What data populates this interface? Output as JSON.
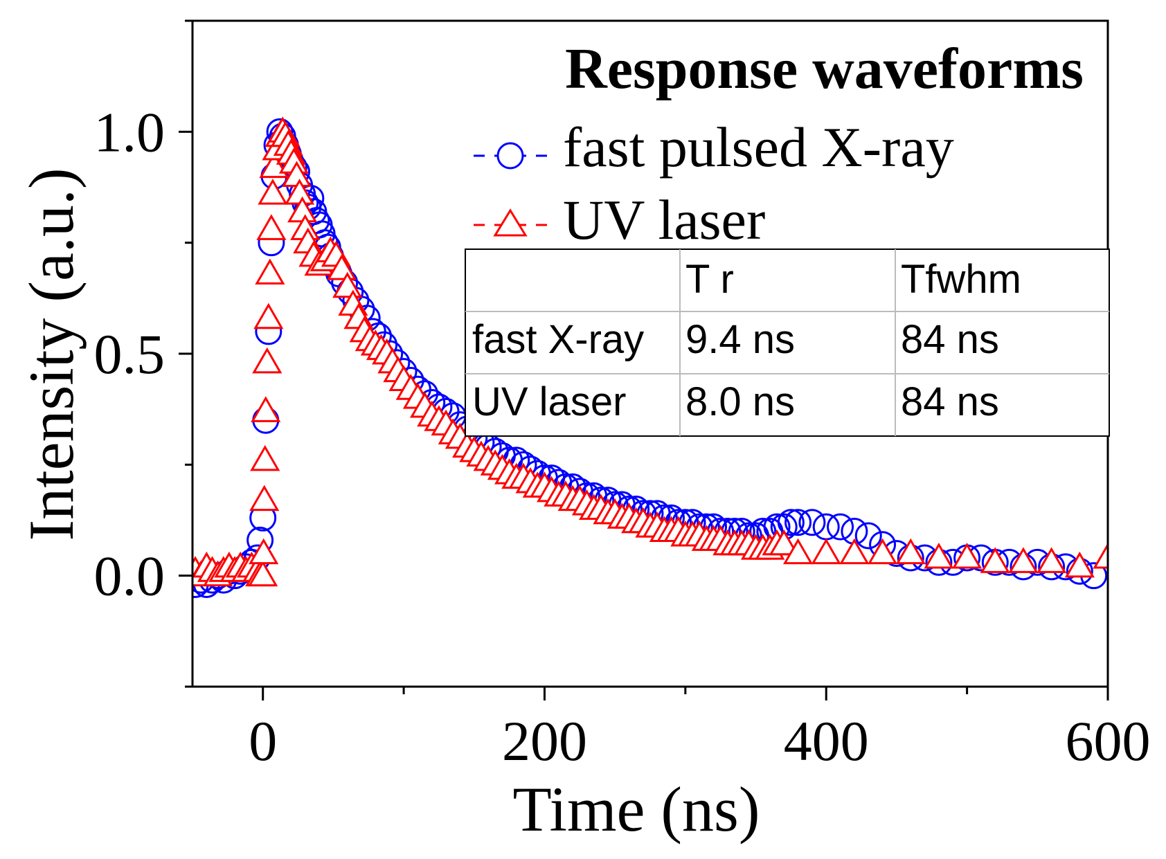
{
  "chart_data": {
    "type": "scatter",
    "title": "",
    "xlabel": "Time (ns)",
    "ylabel": "Intensity (a.u.)",
    "xlim": [
      -50,
      600
    ],
    "ylim": [
      -0.25,
      1.25
    ],
    "x_ticks": [
      0,
      200,
      400,
      600
    ],
    "x_tick_labels": [
      "0",
      "200",
      "400",
      "600"
    ],
    "y_ticks": [
      0.0,
      0.5,
      1.0
    ],
    "y_tick_labels": [
      "0.0",
      "0.5",
      "1.0"
    ],
    "legend": {
      "title": "Response waveforms",
      "position": "top-right"
    },
    "series": [
      {
        "name": "fast pulsed X-ray",
        "legend_label": "fast pulsed X-ray",
        "marker": "circle",
        "color": "#0000ff",
        "x": [
          -48,
          -44,
          -40,
          -36,
          -32,
          -28,
          -24,
          -20,
          -16,
          -12,
          -8,
          -4,
          -2,
          0,
          2,
          4,
          6,
          8,
          10,
          12,
          14,
          16,
          18,
          20,
          22,
          24,
          26,
          28,
          30,
          32,
          34,
          36,
          38,
          40,
          42,
          44,
          46,
          48,
          50,
          54,
          58,
          62,
          66,
          70,
          74,
          78,
          82,
          86,
          90,
          95,
          100,
          105,
          110,
          115,
          120,
          125,
          130,
          135,
          140,
          145,
          150,
          155,
          160,
          165,
          170,
          175,
          180,
          185,
          190,
          195,
          200,
          205,
          210,
          215,
          220,
          225,
          230,
          235,
          240,
          245,
          250,
          255,
          260,
          265,
          270,
          275,
          280,
          285,
          290,
          295,
          300,
          305,
          310,
          315,
          320,
          325,
          330,
          335,
          340,
          345,
          350,
          355,
          360,
          365,
          370,
          375,
          380,
          390,
          400,
          410,
          420,
          430,
          440,
          450,
          460,
          470,
          480,
          490,
          500,
          510,
          520,
          530,
          540,
          550,
          560,
          570,
          580,
          590
        ],
        "y": [
          -0.02,
          -0.01,
          -0.02,
          -0.01,
          0.0,
          -0.01,
          0.01,
          0.0,
          0.01,
          0.02,
          0.03,
          0.04,
          0.08,
          0.13,
          0.35,
          0.55,
          0.75,
          0.9,
          0.97,
          1.0,
          0.99,
          0.97,
          0.95,
          0.93,
          0.92,
          0.91,
          0.88,
          0.86,
          0.84,
          0.83,
          0.85,
          0.82,
          0.8,
          0.79,
          0.77,
          0.75,
          0.74,
          0.72,
          0.7,
          0.68,
          0.66,
          0.64,
          0.62,
          0.6,
          0.58,
          0.55,
          0.54,
          0.52,
          0.5,
          0.48,
          0.46,
          0.44,
          0.42,
          0.41,
          0.39,
          0.38,
          0.37,
          0.36,
          0.34,
          0.33,
          0.31,
          0.3,
          0.29,
          0.28,
          0.27,
          0.26,
          0.26,
          0.25,
          0.24,
          0.23,
          0.22,
          0.22,
          0.21,
          0.2,
          0.2,
          0.19,
          0.18,
          0.18,
          0.17,
          0.17,
          0.16,
          0.16,
          0.15,
          0.15,
          0.14,
          0.14,
          0.14,
          0.13,
          0.13,
          0.12,
          0.12,
          0.12,
          0.11,
          0.11,
          0.11,
          0.1,
          0.1,
          0.1,
          0.1,
          0.09,
          0.09,
          0.1,
          0.1,
          0.11,
          0.11,
          0.12,
          0.12,
          0.12,
          0.11,
          0.11,
          0.1,
          0.09,
          0.07,
          0.05,
          0.04,
          0.04,
          0.03,
          0.03,
          0.04,
          0.04,
          0.03,
          0.03,
          0.02,
          0.03,
          0.02,
          0.02,
          0.01,
          0.0
        ]
      },
      {
        "name": "UV laser",
        "legend_label": "UV laser",
        "marker": "triangle",
        "color": "#ff0000",
        "x": [
          -48,
          -44,
          -40,
          -36,
          -32,
          -28,
          -24,
          -20,
          -16,
          -12,
          -8,
          -4,
          -2,
          0,
          0.5,
          1,
          1.5,
          2,
          3,
          4,
          5,
          6,
          7,
          8,
          10,
          12,
          14,
          16,
          18,
          20,
          22,
          24,
          26,
          28,
          30,
          32,
          36,
          40,
          44,
          48,
          52,
          56,
          60,
          64,
          68,
          72,
          76,
          80,
          84,
          88,
          92,
          96,
          100,
          105,
          110,
          115,
          120,
          125,
          130,
          135,
          140,
          145,
          150,
          155,
          160,
          165,
          170,
          175,
          180,
          185,
          190,
          195,
          200,
          205,
          210,
          215,
          220,
          225,
          230,
          235,
          240,
          245,
          250,
          255,
          260,
          265,
          270,
          275,
          280,
          285,
          290,
          295,
          300,
          305,
          310,
          315,
          320,
          325,
          330,
          335,
          340,
          345,
          350,
          355,
          360,
          365,
          370,
          380,
          400,
          420,
          440,
          460,
          480,
          500,
          520,
          540,
          560,
          580,
          600
        ],
        "y": [
          0.01,
          0.0,
          0.02,
          0.01,
          0.0,
          0.01,
          0.02,
          0.01,
          0.02,
          0.01,
          0.02,
          0.01,
          0.0,
          0.0,
          0.05,
          0.17,
          0.26,
          0.37,
          0.48,
          0.58,
          0.68,
          0.78,
          0.86,
          0.92,
          0.96,
          0.99,
          1.0,
          0.99,
          0.97,
          0.95,
          0.93,
          0.9,
          0.86,
          0.82,
          0.78,
          0.75,
          0.72,
          0.7,
          0.71,
          0.73,
          0.72,
          0.69,
          0.65,
          0.61,
          0.58,
          0.55,
          0.53,
          0.52,
          0.51,
          0.5,
          0.48,
          0.46,
          0.44,
          0.42,
          0.4,
          0.38,
          0.36,
          0.35,
          0.34,
          0.32,
          0.31,
          0.29,
          0.28,
          0.27,
          0.26,
          0.25,
          0.24,
          0.23,
          0.22,
          0.22,
          0.21,
          0.2,
          0.2,
          0.19,
          0.18,
          0.18,
          0.17,
          0.17,
          0.16,
          0.15,
          0.15,
          0.14,
          0.14,
          0.13,
          0.13,
          0.12,
          0.12,
          0.11,
          0.11,
          0.1,
          0.1,
          0.1,
          0.09,
          0.09,
          0.09,
          0.08,
          0.08,
          0.08,
          0.07,
          0.07,
          0.07,
          0.07,
          0.06,
          0.06,
          0.06,
          0.07,
          0.07,
          0.05,
          0.05,
          0.05,
          0.05,
          0.05,
          0.04,
          0.04,
          0.03,
          0.03,
          0.03,
          0.02,
          0.04
        ]
      }
    ],
    "table": {
      "headers": [
        "",
        "T r",
        "Tfwhm"
      ],
      "rows": [
        [
          "fast X-ray",
          "9.4 ns",
          "84 ns"
        ],
        [
          "UV laser",
          "8.0 ns",
          "84 ns"
        ]
      ]
    }
  }
}
